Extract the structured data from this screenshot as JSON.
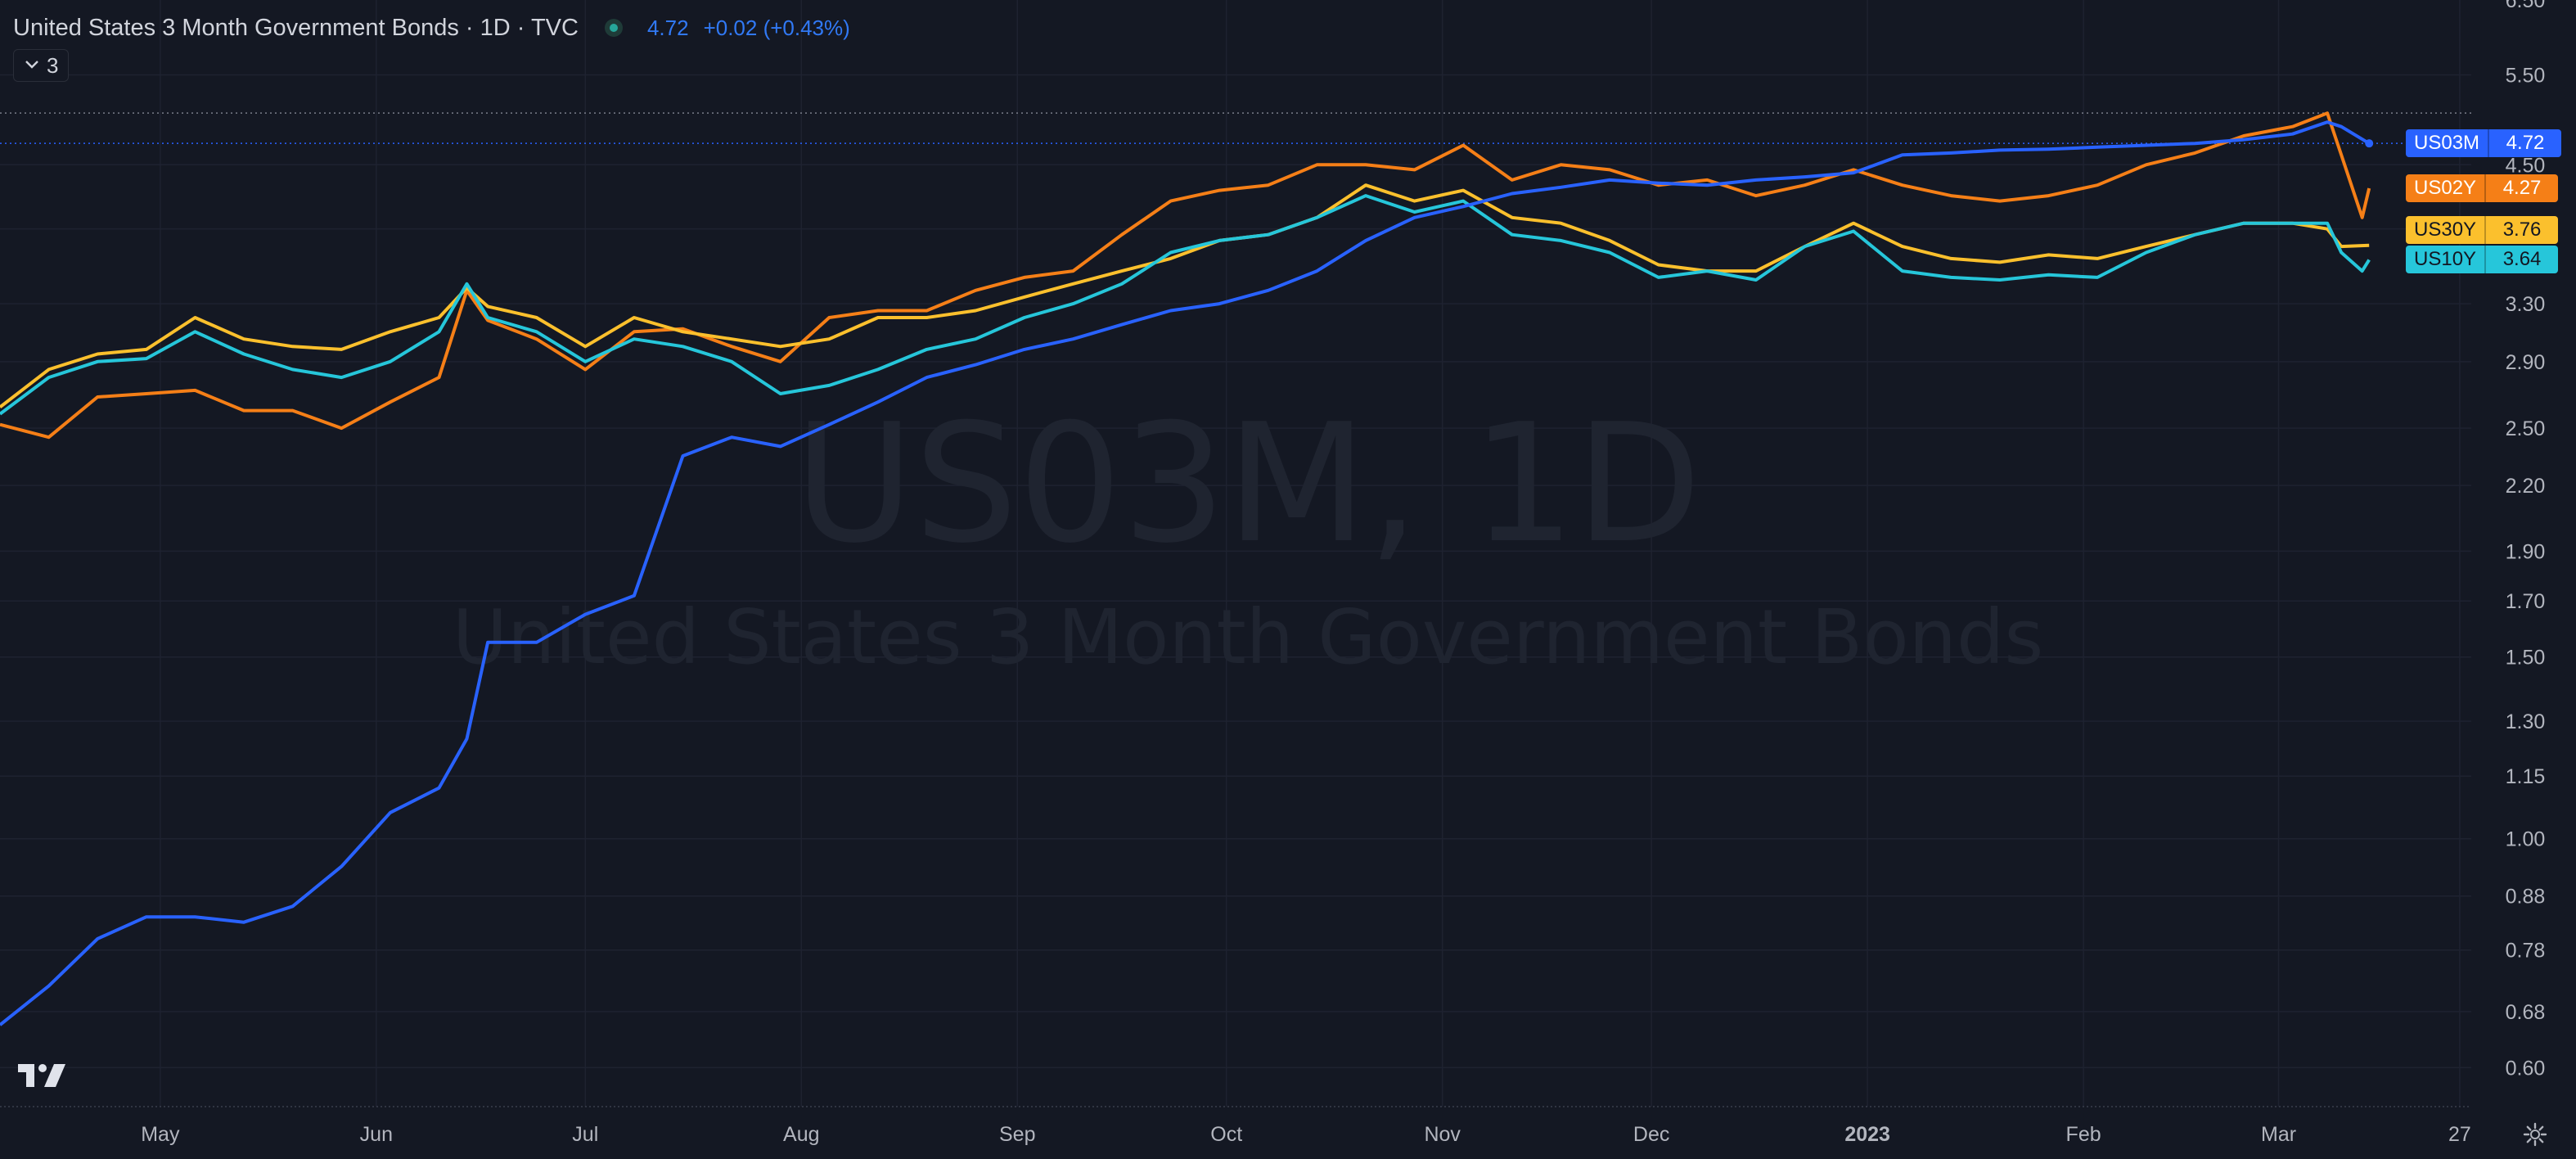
{
  "header": {
    "title": "United States 3 Month Government Bonds · 1D · TVC",
    "price": "4.72",
    "change": "+0.02 (+0.43%)",
    "collapse_label": "3"
  },
  "watermark": {
    "symbol": "US03M, 1D",
    "name": "United States 3 Month Government Bonds"
  },
  "badges": [
    {
      "symbol": "US03M",
      "value": "4.72",
      "color": "#2962ff"
    },
    {
      "symbol": "US02Y",
      "value": "4.27",
      "color": "#f57f17"
    },
    {
      "symbol": "US30Y",
      "value": "3.76",
      "color": "#fbc02d"
    },
    {
      "symbol": "US10Y",
      "value": "3.64",
      "color": "#26c6da"
    }
  ],
  "icons": [
    "tradingview-logo-icon",
    "settings-gear-icon",
    "chevron-down-icon",
    "status-dot-icon"
  ],
  "chart_data": {
    "type": "line",
    "title": "United States 3 Month Government Bonds · 1D · TVC",
    "y_scale": "log",
    "ylim": [
      0.55,
      6.5
    ],
    "y_ticks": [
      "0.60",
      "0.68",
      "0.78",
      "0.88",
      "1.00",
      "1.15",
      "1.30",
      "1.50",
      "1.70",
      "1.90",
      "2.20",
      "2.50",
      "2.90",
      "3.30",
      "3.90",
      "4.50",
      "5.50",
      "6.50"
    ],
    "x_ticks": [
      "May",
      "Jun",
      "Jul",
      "Aug",
      "Sep",
      "Oct",
      "Nov",
      "Dec",
      "2023",
      "Feb",
      "Mar",
      "27"
    ],
    "x_range": [
      "2022-04-08",
      "2023-03-31"
    ],
    "grid": true,
    "series": [
      {
        "name": "US03M",
        "color": "#2962ff",
        "last": 4.72,
        "points": [
          [
            "2022-04-08",
            0.66
          ],
          [
            "2022-04-15",
            0.72
          ],
          [
            "2022-04-22",
            0.8
          ],
          [
            "2022-04-29",
            0.84
          ],
          [
            "2022-05-06",
            0.84
          ],
          [
            "2022-05-13",
            0.83
          ],
          [
            "2022-05-20",
            0.86
          ],
          [
            "2022-05-27",
            0.94
          ],
          [
            "2022-06-03",
            1.06
          ],
          [
            "2022-06-10",
            1.12
          ],
          [
            "2022-06-14",
            1.25
          ],
          [
            "2022-06-17",
            1.55
          ],
          [
            "2022-06-24",
            1.55
          ],
          [
            "2022-07-01",
            1.65
          ],
          [
            "2022-07-08",
            1.72
          ],
          [
            "2022-07-15",
            2.35
          ],
          [
            "2022-07-22",
            2.45
          ],
          [
            "2022-07-29",
            2.4
          ],
          [
            "2022-08-05",
            2.52
          ],
          [
            "2022-08-12",
            2.65
          ],
          [
            "2022-08-19",
            2.8
          ],
          [
            "2022-08-26",
            2.88
          ],
          [
            "2022-09-02",
            2.98
          ],
          [
            "2022-09-09",
            3.05
          ],
          [
            "2022-09-16",
            3.15
          ],
          [
            "2022-09-23",
            3.25
          ],
          [
            "2022-09-30",
            3.3
          ],
          [
            "2022-10-07",
            3.4
          ],
          [
            "2022-10-14",
            3.55
          ],
          [
            "2022-10-21",
            3.8
          ],
          [
            "2022-10-28",
            4.0
          ],
          [
            "2022-11-04",
            4.1
          ],
          [
            "2022-11-11",
            4.22
          ],
          [
            "2022-11-18",
            4.28
          ],
          [
            "2022-11-25",
            4.35
          ],
          [
            "2022-12-02",
            4.32
          ],
          [
            "2022-12-09",
            4.3
          ],
          [
            "2022-12-16",
            4.35
          ],
          [
            "2022-12-23",
            4.38
          ],
          [
            "2022-12-30",
            4.42
          ],
          [
            "2023-01-06",
            4.6
          ],
          [
            "2023-01-13",
            4.62
          ],
          [
            "2023-01-20",
            4.65
          ],
          [
            "2023-01-27",
            4.66
          ],
          [
            "2023-02-03",
            4.68
          ],
          [
            "2023-02-10",
            4.7
          ],
          [
            "2023-02-17",
            4.72
          ],
          [
            "2023-02-24",
            4.76
          ],
          [
            "2023-03-03",
            4.82
          ],
          [
            "2023-03-08",
            4.95
          ],
          [
            "2023-03-10",
            4.9
          ],
          [
            "2023-03-14",
            4.72
          ]
        ]
      },
      {
        "name": "US02Y",
        "color": "#f57f17",
        "last": 4.27,
        "points": [
          [
            "2022-04-08",
            2.52
          ],
          [
            "2022-04-15",
            2.45
          ],
          [
            "2022-04-22",
            2.68
          ],
          [
            "2022-04-29",
            2.7
          ],
          [
            "2022-05-06",
            2.72
          ],
          [
            "2022-05-13",
            2.6
          ],
          [
            "2022-05-20",
            2.6
          ],
          [
            "2022-05-27",
            2.5
          ],
          [
            "2022-06-03",
            2.65
          ],
          [
            "2022-06-10",
            2.8
          ],
          [
            "2022-06-14",
            3.4
          ],
          [
            "2022-06-17",
            3.18
          ],
          [
            "2022-06-24",
            3.05
          ],
          [
            "2022-07-01",
            2.85
          ],
          [
            "2022-07-08",
            3.1
          ],
          [
            "2022-07-15",
            3.12
          ],
          [
            "2022-07-22",
            3.0
          ],
          [
            "2022-07-29",
            2.9
          ],
          [
            "2022-08-05",
            3.2
          ],
          [
            "2022-08-12",
            3.25
          ],
          [
            "2022-08-19",
            3.25
          ],
          [
            "2022-08-26",
            3.4
          ],
          [
            "2022-09-02",
            3.5
          ],
          [
            "2022-09-09",
            3.55
          ],
          [
            "2022-09-16",
            3.85
          ],
          [
            "2022-09-23",
            4.15
          ],
          [
            "2022-09-30",
            4.25
          ],
          [
            "2022-10-07",
            4.3
          ],
          [
            "2022-10-14",
            4.5
          ],
          [
            "2022-10-21",
            4.5
          ],
          [
            "2022-10-28",
            4.45
          ],
          [
            "2022-11-04",
            4.7
          ],
          [
            "2022-11-11",
            4.35
          ],
          [
            "2022-11-18",
            4.5
          ],
          [
            "2022-11-25",
            4.45
          ],
          [
            "2022-12-02",
            4.3
          ],
          [
            "2022-12-09",
            4.35
          ],
          [
            "2022-12-16",
            4.2
          ],
          [
            "2022-12-23",
            4.3
          ],
          [
            "2022-12-30",
            4.45
          ],
          [
            "2023-01-06",
            4.3
          ],
          [
            "2023-01-13",
            4.2
          ],
          [
            "2023-01-20",
            4.15
          ],
          [
            "2023-01-27",
            4.2
          ],
          [
            "2023-02-03",
            4.3
          ],
          [
            "2023-02-10",
            4.5
          ],
          [
            "2023-02-17",
            4.62
          ],
          [
            "2023-02-24",
            4.8
          ],
          [
            "2023-03-03",
            4.9
          ],
          [
            "2023-03-08",
            5.05
          ],
          [
            "2023-03-10",
            4.6
          ],
          [
            "2023-03-13",
            4.0
          ],
          [
            "2023-03-14",
            4.27
          ]
        ]
      },
      {
        "name": "US30Y",
        "color": "#fbc02d",
        "last": 3.76,
        "points": [
          [
            "2022-04-08",
            2.62
          ],
          [
            "2022-04-15",
            2.85
          ],
          [
            "2022-04-22",
            2.95
          ],
          [
            "2022-04-29",
            2.98
          ],
          [
            "2022-05-06",
            3.2
          ],
          [
            "2022-05-13",
            3.05
          ],
          [
            "2022-05-20",
            3.0
          ],
          [
            "2022-05-27",
            2.98
          ],
          [
            "2022-06-03",
            3.1
          ],
          [
            "2022-06-10",
            3.2
          ],
          [
            "2022-06-14",
            3.42
          ],
          [
            "2022-06-17",
            3.28
          ],
          [
            "2022-06-24",
            3.2
          ],
          [
            "2022-07-01",
            3.0
          ],
          [
            "2022-07-08",
            3.2
          ],
          [
            "2022-07-15",
            3.1
          ],
          [
            "2022-07-22",
            3.05
          ],
          [
            "2022-07-29",
            3.0
          ],
          [
            "2022-08-05",
            3.05
          ],
          [
            "2022-08-12",
            3.2
          ],
          [
            "2022-08-19",
            3.2
          ],
          [
            "2022-08-26",
            3.25
          ],
          [
            "2022-09-02",
            3.35
          ],
          [
            "2022-09-09",
            3.45
          ],
          [
            "2022-09-16",
            3.55
          ],
          [
            "2022-09-23",
            3.65
          ],
          [
            "2022-09-30",
            3.8
          ],
          [
            "2022-10-07",
            3.85
          ],
          [
            "2022-10-14",
            4.0
          ],
          [
            "2022-10-21",
            4.3
          ],
          [
            "2022-10-28",
            4.15
          ],
          [
            "2022-11-04",
            4.25
          ],
          [
            "2022-11-11",
            4.0
          ],
          [
            "2022-11-18",
            3.95
          ],
          [
            "2022-11-25",
            3.8
          ],
          [
            "2022-12-02",
            3.6
          ],
          [
            "2022-12-09",
            3.55
          ],
          [
            "2022-12-16",
            3.55
          ],
          [
            "2022-12-23",
            3.75
          ],
          [
            "2022-12-30",
            3.95
          ],
          [
            "2023-01-06",
            3.75
          ],
          [
            "2023-01-13",
            3.65
          ],
          [
            "2023-01-20",
            3.62
          ],
          [
            "2023-01-27",
            3.68
          ],
          [
            "2023-02-03",
            3.65
          ],
          [
            "2023-02-10",
            3.75
          ],
          [
            "2023-02-17",
            3.85
          ],
          [
            "2023-02-24",
            3.95
          ],
          [
            "2023-03-03",
            3.95
          ],
          [
            "2023-03-08",
            3.9
          ],
          [
            "2023-03-10",
            3.75
          ],
          [
            "2023-03-14",
            3.76
          ]
        ]
      },
      {
        "name": "US10Y",
        "color": "#26c6da",
        "last": 3.64,
        "points": [
          [
            "2022-04-08",
            2.58
          ],
          [
            "2022-04-15",
            2.8
          ],
          [
            "2022-04-22",
            2.9
          ],
          [
            "2022-04-29",
            2.92
          ],
          [
            "2022-05-06",
            3.1
          ],
          [
            "2022-05-13",
            2.95
          ],
          [
            "2022-05-20",
            2.85
          ],
          [
            "2022-05-27",
            2.8
          ],
          [
            "2022-06-03",
            2.9
          ],
          [
            "2022-06-10",
            3.1
          ],
          [
            "2022-06-14",
            3.45
          ],
          [
            "2022-06-17",
            3.2
          ],
          [
            "2022-06-24",
            3.1
          ],
          [
            "2022-07-01",
            2.9
          ],
          [
            "2022-07-08",
            3.05
          ],
          [
            "2022-07-15",
            3.0
          ],
          [
            "2022-07-22",
            2.9
          ],
          [
            "2022-07-29",
            2.7
          ],
          [
            "2022-08-05",
            2.75
          ],
          [
            "2022-08-12",
            2.85
          ],
          [
            "2022-08-19",
            2.98
          ],
          [
            "2022-08-26",
            3.05
          ],
          [
            "2022-09-02",
            3.2
          ],
          [
            "2022-09-09",
            3.3
          ],
          [
            "2022-09-16",
            3.45
          ],
          [
            "2022-09-23",
            3.7
          ],
          [
            "2022-09-30",
            3.8
          ],
          [
            "2022-10-07",
            3.85
          ],
          [
            "2022-10-14",
            4.0
          ],
          [
            "2022-10-21",
            4.2
          ],
          [
            "2022-10-28",
            4.05
          ],
          [
            "2022-11-04",
            4.15
          ],
          [
            "2022-11-11",
            3.85
          ],
          [
            "2022-11-18",
            3.8
          ],
          [
            "2022-11-25",
            3.7
          ],
          [
            "2022-12-02",
            3.5
          ],
          [
            "2022-12-09",
            3.55
          ],
          [
            "2022-12-16",
            3.48
          ],
          [
            "2022-12-23",
            3.75
          ],
          [
            "2022-12-30",
            3.88
          ],
          [
            "2023-01-06",
            3.55
          ],
          [
            "2023-01-13",
            3.5
          ],
          [
            "2023-01-20",
            3.48
          ],
          [
            "2023-01-27",
            3.52
          ],
          [
            "2023-02-03",
            3.5
          ],
          [
            "2023-02-10",
            3.7
          ],
          [
            "2023-02-17",
            3.85
          ],
          [
            "2023-02-24",
            3.95
          ],
          [
            "2023-03-03",
            3.95
          ],
          [
            "2023-03-08",
            3.95
          ],
          [
            "2023-03-10",
            3.7
          ],
          [
            "2023-03-13",
            3.55
          ],
          [
            "2023-03-14",
            3.64
          ]
        ]
      }
    ]
  }
}
